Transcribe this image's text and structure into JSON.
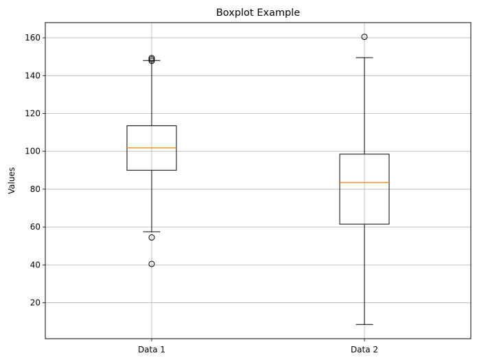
{
  "chart_data": {
    "type": "boxplot",
    "title": "Boxplot Example",
    "xlabel": "",
    "ylabel": "Values",
    "ylim": [
      1,
      168
    ],
    "yticks": [
      20,
      40,
      60,
      80,
      100,
      120,
      140,
      160
    ],
    "grid": true,
    "categories": [
      "Data 1",
      "Data 2"
    ],
    "boxes": [
      {
        "label": "Data 1",
        "whisker_low": 57.5,
        "q1": 90,
        "median": 101.8,
        "q3": 113.5,
        "whisker_high": 148,
        "outliers": [
          149.3,
          148.6,
          147.8,
          54.5,
          40.5
        ]
      },
      {
        "label": "Data 2",
        "whisker_low": 8.5,
        "q1": 61.5,
        "median": 83.5,
        "q3": 98.5,
        "whisker_high": 149.5,
        "outliers": [
          160.5
        ]
      }
    ],
    "colors": {
      "box": "#000000",
      "median": "#ff7f0e",
      "grid": "#b0b0b0"
    }
  }
}
